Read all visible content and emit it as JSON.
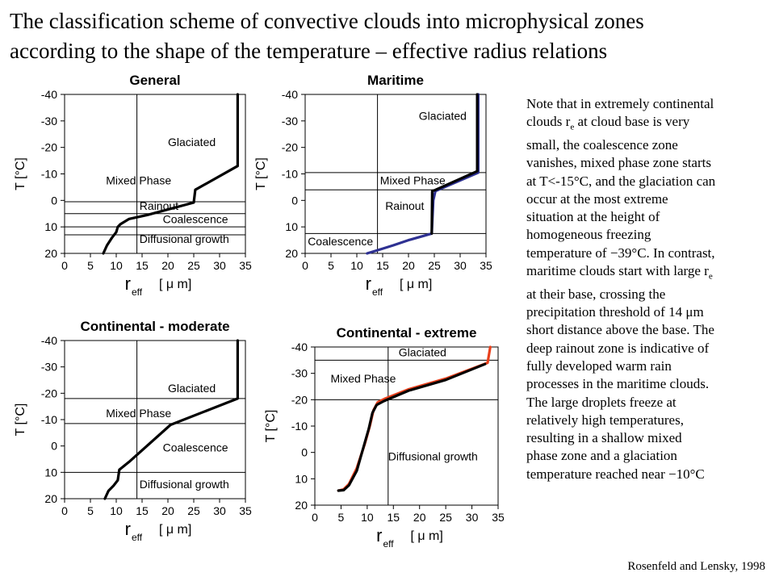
{
  "title": {
    "line1": "The classification scheme of convective clouds into microphysical zones",
    "line2": "according to the shape of the temperature – effective radius relations"
  },
  "note": {
    "lines": [
      "Note that in extremely continental",
      "clouds r_e at cloud base is very",
      "small, the coalescence zone",
      "vanishes, mixed phase zone starts",
      "at T<-15°C, and the glaciation can",
      "occur at the most extreme",
      "situation at the height of",
      "homogeneous freezing",
      "temperature of −39°C. In contrast,",
      "maritime clouds start with large r_e",
      "at their base, crossing the",
      "precipitation threshold of 14 μm",
      "short distance above the base. The",
      "deep rainout zone is indicative of",
      "fully developed warm rain",
      "processes in the maritime clouds.",
      "The large droplets freeze at",
      "relatively high temperatures,",
      "resulting in a shallow mixed",
      "phase zone and a glaciation",
      "temperature reached near −10°C"
    ]
  },
  "credit": "Rosenfeld and Lensky, 1998",
  "colors": {
    "black": "#000000",
    "blue": "#2e3192",
    "red": "#e8401c"
  },
  "chart_data": [
    {
      "type": "line",
      "title": "General",
      "xlabel": "r",
      "xlabel_sub": "eff",
      "xlabel_unit": "[ μ m]",
      "ylabel": "T [°C]",
      "xlim": [
        0,
        35
      ],
      "ylim": [
        20,
        -40
      ],
      "xticks": [
        "0",
        "5",
        "10",
        "15",
        "20",
        "25",
        "30",
        "35"
      ],
      "yticks": [
        "-40",
        "-30",
        "-20",
        "-10",
        "0",
        "10",
        "20"
      ],
      "grid": "zone lines",
      "vline": 14,
      "zone_lines": [
        13,
        5,
        0.5,
        10
      ],
      "zones": [
        {
          "label": "Glaciated",
          "x": 20,
          "y": -22
        },
        {
          "label": "Mixed Phase",
          "x": 8,
          "y": -7.5
        },
        {
          "label": "Rainout",
          "x": 14.5,
          "y": 2
        },
        {
          "label": "Coalescence",
          "x": 19,
          "y": 7
        },
        {
          "label": "Diffusional growth",
          "x": 14.5,
          "y": 14.5
        }
      ],
      "series": [
        {
          "color": "#000000",
          "x": [
            7.5,
            8.2,
            9.2,
            10.0,
            10.3,
            10.8,
            12.5,
            16,
            25,
            25.3,
            33.5,
            33.5
          ],
          "y": [
            20,
            17,
            14,
            12,
            10,
            9,
            7,
            5.5,
            0.8,
            -4,
            -13,
            -40
          ]
        }
      ]
    },
    {
      "type": "line",
      "title": "Maritime",
      "xlabel": "r",
      "xlabel_sub": "eff",
      "xlabel_unit": "[ μ m]",
      "ylabel": "T [°C]",
      "xlim": [
        0,
        35
      ],
      "ylim": [
        20,
        -40
      ],
      "xticks": [
        "0",
        "5",
        "10",
        "15",
        "20",
        "25",
        "30",
        "35"
      ],
      "yticks": [
        "-40",
        "-30",
        "-20",
        "-10",
        "0",
        "10",
        "20"
      ],
      "grid": "zone lines",
      "vline": 14,
      "zone_lines": [
        -10.5,
        -4,
        12.5
      ],
      "zones": [
        {
          "label": "Glaciated",
          "x": 22,
          "y": -32
        },
        {
          "label": "Mixed Phase",
          "x": 14.5,
          "y": -7.5
        },
        {
          "label": "Rainout",
          "x": 15.5,
          "y": 2
        },
        {
          "label": "Coalescence",
          "x": 0.5,
          "y": 15.5
        }
      ],
      "series": [
        {
          "color": "#2e3192",
          "x": [
            12,
            14,
            17,
            20,
            24.5,
            24.8,
            25.2,
            33.5,
            33.5
          ],
          "y": [
            20,
            18.8,
            17,
            15,
            12.5,
            0,
            -3.5,
            -10.5,
            -40
          ]
        },
        {
          "color": "#000000",
          "x": [
            24.5,
            24.6,
            25,
            33.3,
            33.3
          ],
          "y": [
            12.5,
            -3.6,
            -3.8,
            -11,
            -40
          ]
        }
      ]
    },
    {
      "type": "line",
      "title": "Continental - moderate",
      "xlabel": "r",
      "xlabel_sub": "eff",
      "xlabel_unit": "[ μ m]",
      "ylabel": "T [°C]",
      "xlim": [
        0,
        35
      ],
      "ylim": [
        20,
        -40
      ],
      "xticks": [
        "0",
        "5",
        "10",
        "15",
        "20",
        "25",
        "30",
        "35"
      ],
      "yticks": [
        "-40",
        "-30",
        "-20",
        "-10",
        "0",
        "10",
        "20"
      ],
      "grid": "zone lines",
      "vline": 14,
      "zone_lines": [
        -18,
        -8.5,
        10
      ],
      "zones": [
        {
          "label": "Glaciated",
          "x": 20,
          "y": -22
        },
        {
          "label": "Mixed Phase",
          "x": 8,
          "y": -12.5
        },
        {
          "label": "Coalescence",
          "x": 19,
          "y": 0.5
        },
        {
          "label": "Diffusional growth",
          "x": 14.5,
          "y": 14.5
        }
      ],
      "series": [
        {
          "color": "#000000",
          "x": [
            7.8,
            8.5,
            9.5,
            10.3,
            10.6,
            12.5,
            20.5,
            33.5,
            33.5
          ],
          "y": [
            20,
            17,
            15,
            13,
            9,
            6,
            -8,
            -18,
            -40
          ]
        }
      ]
    },
    {
      "type": "line",
      "title": "Continental - extreme",
      "xlabel": "r",
      "xlabel_sub": "eff",
      "xlabel_unit": "[ μ m]",
      "ylabel": "T [°C]",
      "xlim": [
        0,
        35
      ],
      "ylim": [
        20,
        -40
      ],
      "xticks": [
        "0",
        "5",
        "10",
        "15",
        "20",
        "25",
        "30",
        "35"
      ],
      "yticks": [
        "-40",
        "-30",
        "-20",
        "-10",
        "0",
        "10",
        "20"
      ],
      "grid": "zone lines",
      "vline": 14,
      "zone_lines": [
        -35,
        -20
      ],
      "zones": [
        {
          "label": "Glaciated",
          "x": 16,
          "y": -38
        },
        {
          "label": "Mixed Phase",
          "x": 3,
          "y": -28
        },
        {
          "label": "Diffusional growth",
          "x": 14,
          "y": 1.5
        }
      ],
      "series": [
        {
          "color": "#e8401c",
          "x": [
            4.5,
            5.5,
            6.5,
            8,
            9.5,
            10.5,
            11.2,
            12,
            13.5,
            18,
            25,
            33,
            33.5
          ],
          "y": [
            14.5,
            14,
            12,
            6,
            -3,
            -10,
            -16,
            -19,
            -20.5,
            -24,
            -28,
            -34,
            -40
          ]
        },
        {
          "color": "#000000",
          "x": [
            4.5,
            5.5,
            6.5,
            8,
            9.3,
            10.3,
            11,
            11.8,
            13.2,
            18,
            25,
            32.5
          ],
          "y": [
            14.5,
            14.3,
            12.5,
            7,
            -2,
            -9,
            -15,
            -18,
            -19.5,
            -23.5,
            -27.5,
            -33.5
          ]
        }
      ]
    }
  ]
}
